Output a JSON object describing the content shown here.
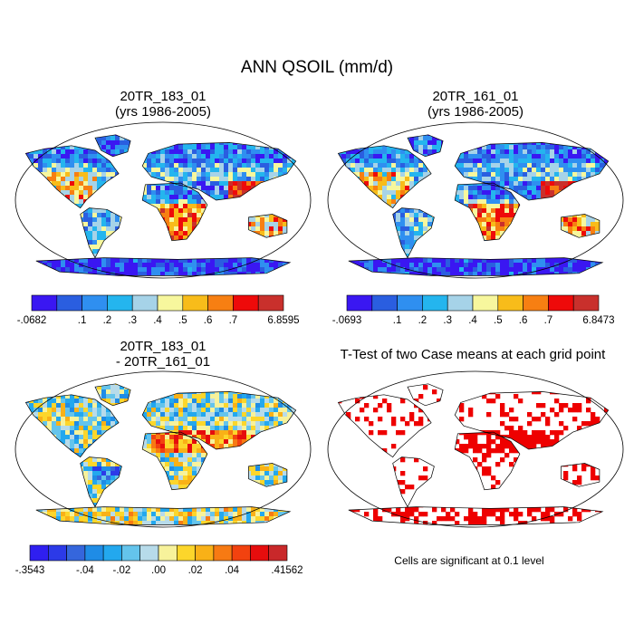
{
  "title": "ANN QSOIL (mm/d)",
  "panels": [
    {
      "title_line1": "20TR_183_01",
      "title_line2": "(yrs 1986-2005)"
    },
    {
      "title_line1": "20TR_161_01",
      "title_line2": "(yrs 1986-2005)"
    },
    {
      "title_line1": "20TR_183_01",
      "title_line2": "- 20TR_161_01"
    },
    {
      "title_line1": "T-Test of two Case means at each grid point"
    }
  ],
  "colorbars": [
    {
      "labels": [
        "-.0682",
        ".1",
        ".2",
        ".3",
        ".4",
        ".5",
        ".6",
        ".7",
        "6.8595"
      ],
      "colors": [
        "#3a17f2",
        "#2a5ee0",
        "#2f8ff0",
        "#24b5ee",
        "#a6d3e8",
        "#f7f79d",
        "#f8bc1a",
        "#f77f12",
        "#ee0a0a",
        "#c9302c"
      ]
    },
    {
      "labels": [
        "-.0693",
        ".1",
        ".2",
        ".3",
        ".4",
        ".5",
        ".6",
        ".7",
        "6.8473"
      ],
      "colors": [
        "#3a17f2",
        "#2a5ee0",
        "#2f8ff0",
        "#24b5ee",
        "#a6d3e8",
        "#f7f79d",
        "#f8bc1a",
        "#f77f12",
        "#ee0a0a",
        "#c9302c"
      ]
    },
    {
      "labels": [
        "-.3543",
        "-.04",
        "-.02",
        ".00",
        ".02",
        ".04",
        ".41562"
      ],
      "colors": [
        "#2f1ff0",
        "#2c3ae8",
        "#3566dc",
        "#1f8ce6",
        "#23a8ee",
        "#64c4ec",
        "#b7dbea",
        "#f7f29b",
        "#fcd62b",
        "#f9b117",
        "#f77a13",
        "#f2420f",
        "#e60d0d",
        "#c9282a"
      ]
    }
  ],
  "footnote": "Cells are significant at 0.1 level"
}
